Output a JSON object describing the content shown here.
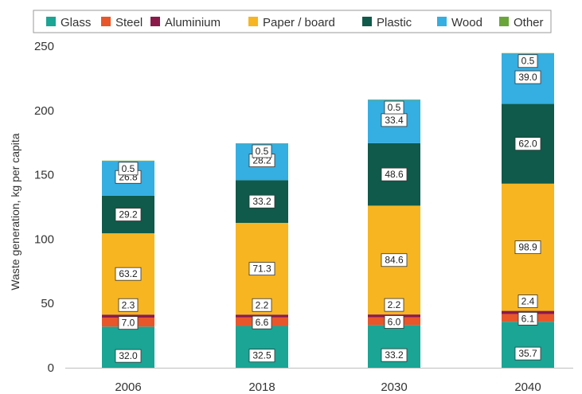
{
  "chart_data": {
    "type": "bar",
    "stacked": true,
    "title": "",
    "xlabel": "",
    "ylabel": "Waste generation, kg per capita",
    "ylim": [
      0,
      250
    ],
    "yticks": [
      0,
      50,
      100,
      150,
      200,
      250
    ],
    "grid": false,
    "legend_position": "top",
    "categories": [
      "2006",
      "2018",
      "2030",
      "2040"
    ],
    "series": [
      {
        "name": "Glass",
        "color": "#1aa595",
        "values": [
          32.0,
          32.5,
          33.2,
          35.7
        ],
        "labels": [
          "32.0",
          "32.5",
          "33.2",
          "35.7"
        ]
      },
      {
        "name": "Steel",
        "color": "#e8562a",
        "values": [
          7.0,
          6.6,
          6.0,
          6.1
        ],
        "labels": [
          "7.0",
          "6.6",
          "6.0",
          "6.1"
        ]
      },
      {
        "name": "Aluminium",
        "color": "#8b1a4a",
        "values": [
          2.3,
          2.2,
          2.2,
          2.4
        ],
        "labels": [
          "2.3",
          "2.2",
          "2.2",
          "2.4"
        ]
      },
      {
        "name": "Paper / board",
        "color": "#f7b521",
        "values": [
          63.2,
          71.3,
          84.6,
          98.9
        ],
        "labels": [
          "63.2",
          "71.3",
          "84.6",
          "98.9"
        ]
      },
      {
        "name": "Plastic",
        "color": "#0f5a4a",
        "values": [
          29.2,
          33.2,
          48.6,
          62.0
        ],
        "labels": [
          "29.2",
          "33.2",
          "48.6",
          "62.0"
        ]
      },
      {
        "name": "Wood",
        "color": "#35aee2",
        "values": [
          26.8,
          28.2,
          33.4,
          39.0
        ],
        "labels": [
          "26.8",
          "28.2",
          "33.4",
          "39.0"
        ]
      },
      {
        "name": "Other",
        "color": "#6aa53a",
        "values": [
          0.5,
          0.5,
          0.5,
          0.5
        ],
        "labels": [
          "0.5",
          "0.5",
          "0.5",
          "0.5"
        ]
      }
    ]
  }
}
